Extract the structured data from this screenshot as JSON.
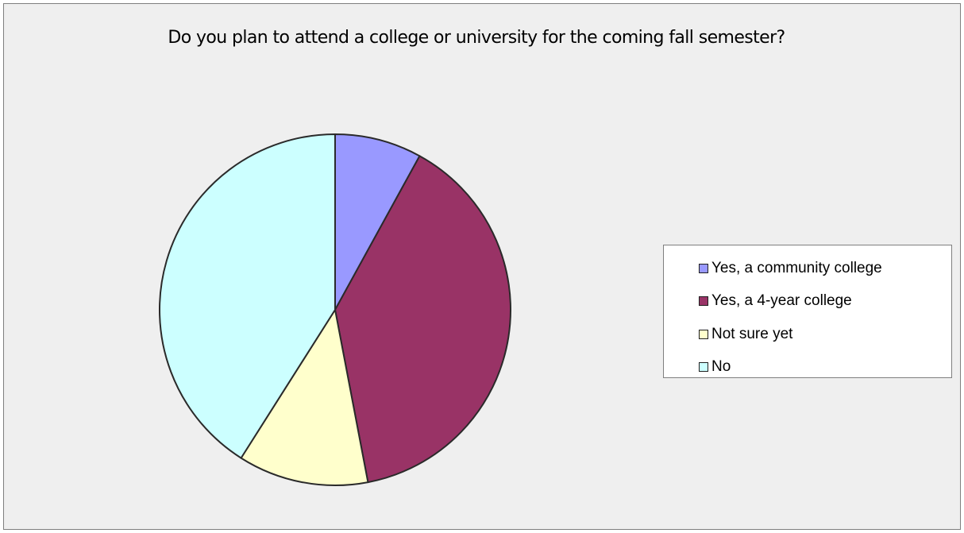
{
  "chart_data": {
    "type": "pie",
    "title": "Do you plan to attend a college or university for the coming fall semester?",
    "categories": [
      "Yes, a community college",
      "Yes, a 4-year college",
      "Not sure yet",
      "No"
    ],
    "values": [
      8,
      39,
      12,
      41
    ],
    "colors": [
      "#9999ff",
      "#993366",
      "#ffffcc",
      "#ccffff"
    ],
    "legend_position": "right"
  }
}
